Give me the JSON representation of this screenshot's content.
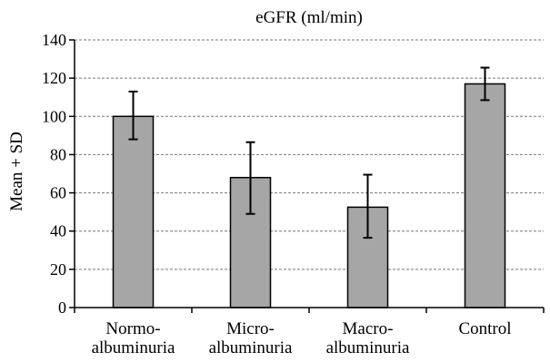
{
  "chart_data": {
    "type": "bar",
    "title": "eGFR (ml/min)",
    "xlabel": "",
    "ylabel": "Mean + SD",
    "ylim": [
      0,
      140
    ],
    "yticks": [
      0,
      20,
      40,
      60,
      80,
      100,
      120,
      140
    ],
    "grid": true,
    "categories": [
      [
        "Normo-",
        "albuminuria"
      ],
      [
        "Micro-",
        "albuminuria"
      ],
      [
        "Macro-",
        "albuminuria"
      ],
      [
        "Control"
      ]
    ],
    "values": [
      100,
      68,
      52.5,
      117
    ],
    "error_low": [
      88,
      49,
      36.5,
      108.5
    ],
    "error_high": [
      113,
      86.5,
      69.5,
      125.5
    ],
    "colors": {
      "bar_fill": "#a6a6a6",
      "bar_stroke": "#000000",
      "grid": "#777777",
      "error": "#000000"
    }
  }
}
